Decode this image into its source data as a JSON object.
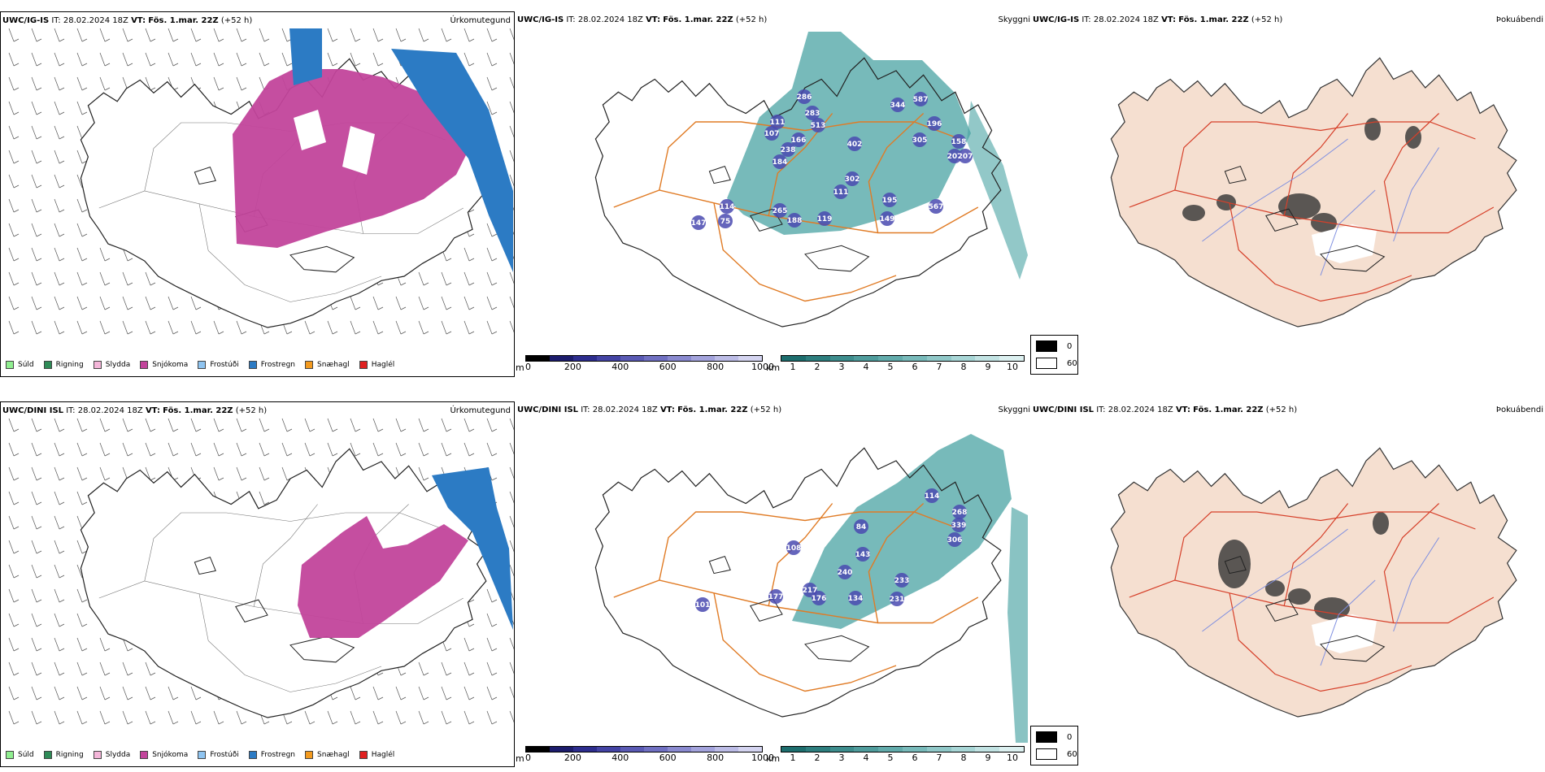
{
  "rows": [
    {
      "model": "UWC/IG-IS",
      "precip": {
        "it_label": "IT:",
        "it_value": "28.02.2024 18Z",
        "vt_label": "VT:",
        "vt_value": "Fös. 1.mar. 22Z",
        "lead": "(+52 h)",
        "field": "Úrkomutegund"
      },
      "cloud": {
        "it_label": "IT:",
        "it_value": "28.02.2024 18Z",
        "vt_label": "VT:",
        "vt_value": "Fös. 1.mar. 22Z",
        "lead": "(+52 h)",
        "field": "Skyggni",
        "labels": [
          "286",
          "283",
          "513",
          "111",
          "107",
          "166",
          "238",
          "184",
          "402",
          "344",
          "587",
          "196",
          "305",
          "158",
          "207",
          "207",
          "302",
          "111",
          "114",
          "75",
          "147",
          "265",
          "188",
          "119",
          "195",
          "149",
          "567"
        ]
      },
      "fog": {
        "it_label": "IT:",
        "it_value": "28.02.2024 18Z",
        "vt_label": "VT:",
        "vt_value": "Fös. 1.mar. 22Z",
        "lead": "(+52 h)",
        "field": "Þokuábendi"
      }
    },
    {
      "model": "UWC/DINI ISL",
      "precip": {
        "it_label": "IT:",
        "it_value": "28.02.2024 18Z",
        "vt_label": "VT:",
        "vt_value": "Fös. 1.mar. 22Z",
        "lead": "(+52 h)",
        "field": "Úrkomutegund"
      },
      "cloud": {
        "it_label": "IT:",
        "it_value": "28.02.2024 18Z",
        "vt_label": "VT:",
        "vt_value": "Fös. 1.mar. 22Z",
        "lead": "(+52 h)",
        "field": "Skyggni",
        "labels": [
          "114",
          "268",
          "339",
          "306",
          "84",
          "108",
          "143",
          "240",
          "233",
          "217",
          "176",
          "134",
          "231",
          "101",
          "177"
        ]
      },
      "fog": {
        "it_label": "IT:",
        "it_value": "28.02.2024 18Z",
        "vt_label": "VT:",
        "vt_value": "Fös. 1.mar. 22Z",
        "lead": "(+52 h)",
        "field": "Þokuábendi"
      }
    }
  ],
  "precip_legend": [
    {
      "label": "Súld",
      "color": "#90ee90"
    },
    {
      "label": "Rigning",
      "color": "#2e8b57"
    },
    {
      "label": "Slydda",
      "color": "#f4b6d9"
    },
    {
      "label": "Snjókoma",
      "color": "#c2449b"
    },
    {
      "label": "Frostúði",
      "color": "#8fc4f0"
    },
    {
      "label": "Frostregn",
      "color": "#2c7bc4"
    },
    {
      "label": "Snæhagl",
      "color": "#f39a1f"
    },
    {
      "label": "Haglél",
      "color": "#e02020"
    }
  ],
  "cloudbase_bar": {
    "unit": "m",
    "ticks": [
      "0",
      "200",
      "400",
      "600",
      "800",
      "1000"
    ],
    "colors": [
      "#000000",
      "#1c1c6c",
      "#2d2d8e",
      "#4343a4",
      "#5a5ab4",
      "#7070c2",
      "#8a8ad0",
      "#a3a3dc",
      "#bcbce6",
      "#d4d4f0"
    ]
  },
  "visibility_bar": {
    "unit": "km",
    "ticks": [
      "1",
      "2",
      "3",
      "4",
      "5",
      "6",
      "7",
      "8",
      "9",
      "10"
    ],
    "colors": [
      "#1d6e6e",
      "#2d7e7e",
      "#3d8d8d",
      "#4f9c9c",
      "#62abab",
      "#78baba",
      "#90c8c8",
      "#a8d6d6",
      "#c2e3e3",
      "#dcf0f0"
    ]
  },
  "fog_legend": [
    {
      "label": "0",
      "color": "#000000"
    },
    {
      "label": "60",
      "color": "#ffffff"
    }
  ],
  "colors": {
    "coast": "#222222",
    "roads": "#e07b25",
    "rivers": "#7f8fe0",
    "land_fog": "#f5dfd0",
    "snow": "#c2449b",
    "frz": "#2c7bc4",
    "vis": "#4aa3a3",
    "cloud": "#4a4ab0"
  }
}
